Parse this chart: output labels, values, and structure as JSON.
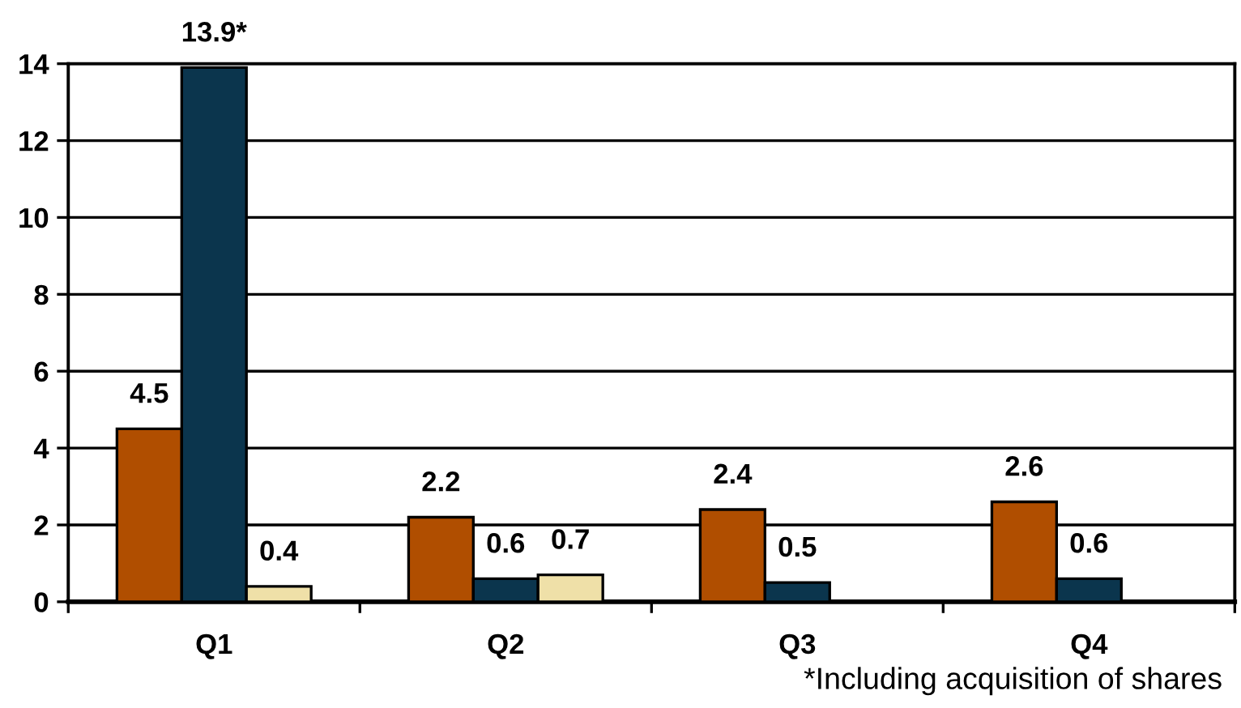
{
  "chart_data": {
    "type": "bar",
    "categories": [
      "Q1",
      "Q2",
      "Q3",
      "Q4"
    ],
    "series": [
      {
        "color": "#b04e00",
        "values": [
          4.5,
          2.2,
          2.4,
          2.6
        ],
        "value_labels": [
          "4.5",
          "2.2",
          "2.4",
          "2.6"
        ]
      },
      {
        "color": "#0b354d",
        "values": [
          13.9,
          0.6,
          0.5,
          0.6
        ],
        "value_labels": [
          "13.9*",
          "0.6",
          "0.5",
          "0.6"
        ]
      },
      {
        "color": "#efe0a8",
        "values": [
          0.4,
          0.7,
          null,
          null
        ],
        "value_labels": [
          "0.4",
          "0.7",
          null,
          null
        ]
      }
    ],
    "ylim": [
      0,
      14
    ],
    "yticks": [
      0,
      2,
      4,
      6,
      8,
      10,
      12,
      14
    ],
    "grid": "y",
    "annotations": [
      "*Including acquisition of shares"
    ]
  }
}
